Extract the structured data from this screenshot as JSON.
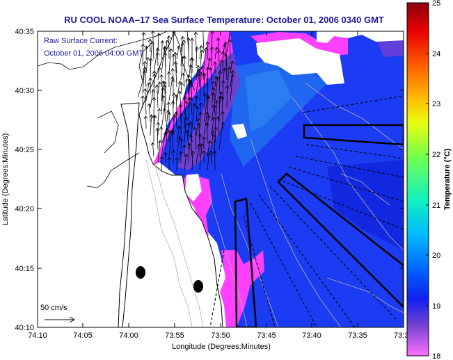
{
  "map": {
    "title": "RU COOL  NOAA–17  Sea Surface Temperature:  October 01, 2006 0340 GMT",
    "annotation_line1": "Raw Surface Current:",
    "annotation_line2": "October 01, 2006 04:00 GMT",
    "x_axis_label": "Longitude (Degrees:Minutes)",
    "y_axis_label": "Latitude (Degrees:Minutes)",
    "x_ticks": [
      "74:10",
      "74:05",
      "74:00",
      "73:55",
      "73:50",
      "73:45",
      "73:40",
      "73:35",
      "73:3"
    ],
    "y_ticks": [
      "40:35",
      "40:30",
      "40:25",
      "40:20",
      "40:15",
      "40:10"
    ],
    "scale_label": "50 cm/s",
    "colorbar": {
      "label": "Temperature (°C)",
      "ticks": [
        "25",
        "24",
        "23",
        "22",
        "21",
        "20",
        "19",
        "18"
      ],
      "min": 18,
      "max": 25,
      "colors": [
        "#9b0010",
        "#ff1b0a",
        "#ff7a00",
        "#ffe400",
        "#b6ff3a",
        "#2bff9c",
        "#00e8ff",
        "#0090ff",
        "#1030ff",
        "#5a30d0",
        "#c050d0",
        "#ff60ff"
      ]
    }
  }
}
